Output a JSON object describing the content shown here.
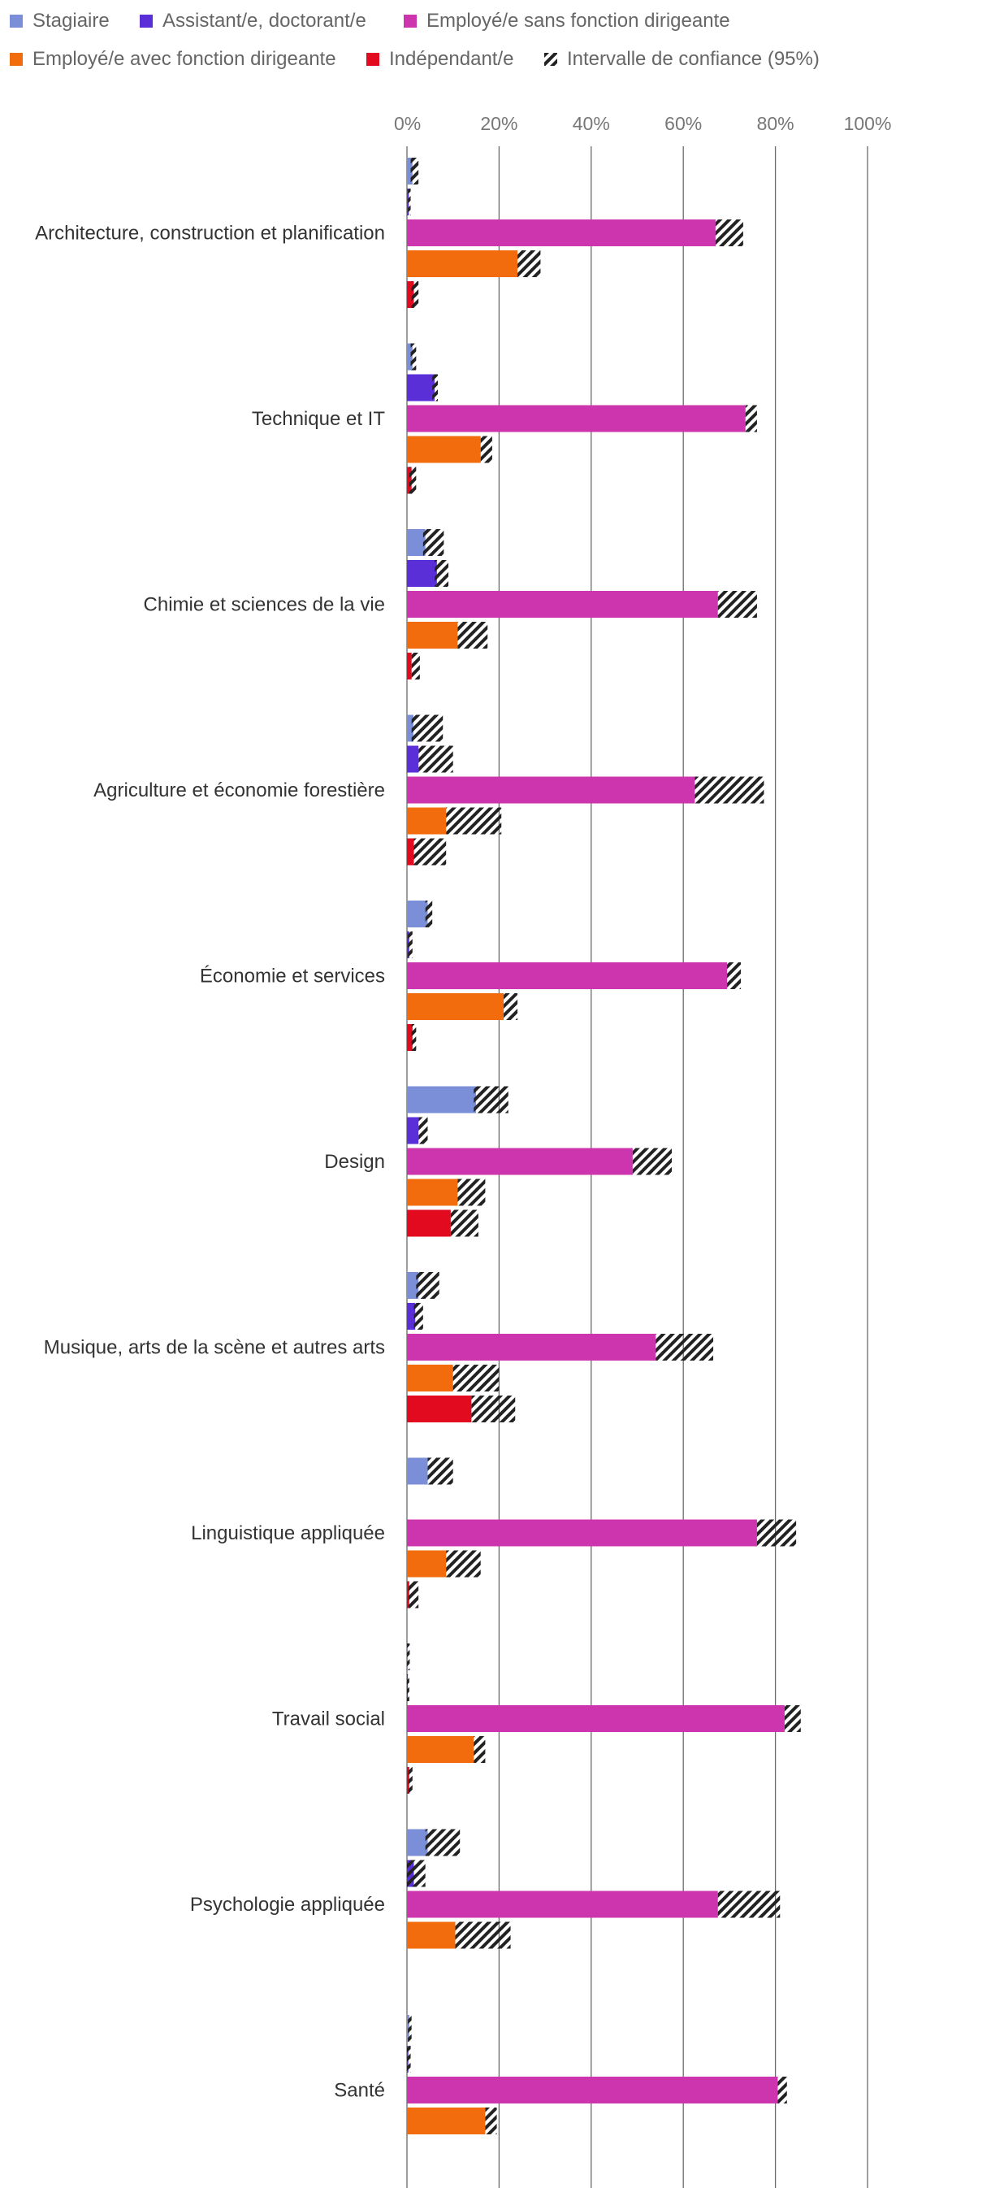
{
  "chart_data": {
    "type": "bar",
    "orientation": "horizontal",
    "title": "",
    "xlabel": "",
    "ylabel": "",
    "xlim": [
      0,
      100
    ],
    "grid": true,
    "legend_position": "top",
    "x_ticks": [
      "0%",
      "20%",
      "40%",
      "60%",
      "80%",
      "100%"
    ],
    "x_tick_values": [
      0,
      20,
      40,
      60,
      80,
      100
    ],
    "categories": [
      "Architecture, construction et planification",
      "Technique et IT",
      "Chimie et sciences de la vie",
      "Agriculture et économie forestière",
      "Économie et services",
      "Design",
      "Musique, arts de la scène et autres arts",
      "Linguistique appliquée",
      "Travail social",
      "Psychologie appliquée",
      "Santé"
    ],
    "series": [
      {
        "name": "Stagiaire",
        "color": "#7b8fd9",
        "values": [
          1.2,
          1.2,
          4,
          1.4,
          4.5,
          15,
          2.5,
          4.5,
          0.2,
          4.5,
          0.5
        ],
        "ci_low": [
          0.8,
          0.8,
          3.5,
          1,
          4,
          14.5,
          2,
          4.5,
          0,
          4,
          0.2
        ],
        "ci_high": [
          2.5,
          2,
          8,
          7.8,
          5.5,
          22,
          7,
          10,
          0.6,
          11.5,
          1
        ]
      },
      {
        "name": "Assistant/e, doctorant/e",
        "color": "#5b2fd8",
        "values": [
          0.4,
          6,
          6.5,
          2.5,
          0.5,
          2.5,
          1.8,
          0,
          0.2,
          1.5,
          0.3
        ],
        "ci_low": [
          0.2,
          5.5,
          6,
          2.5,
          0.2,
          2.5,
          1.5,
          0,
          0,
          0,
          0
        ],
        "ci_high": [
          0.8,
          6.7,
          9,
          10,
          1.2,
          4.5,
          3.5,
          0,
          0.5,
          4,
          0.8
        ]
      },
      {
        "name": "Employé/e sans fonction dirigeante",
        "color": "#cc35ad",
        "values": [
          67,
          73.5,
          67.5,
          62.5,
          69.5,
          49,
          54,
          76,
          82,
          67.5,
          80.5
        ],
        "ci_low": [
          67,
          73.5,
          67.5,
          62.5,
          69.5,
          49,
          54,
          76,
          82,
          67.5,
          80.5
        ],
        "ci_high": [
          73,
          76,
          76,
          77.5,
          72.5,
          57.5,
          66.5,
          84.5,
          85.5,
          81,
          82.5
        ]
      },
      {
        "name": "Employé/e avec fonction dirigeante",
        "color": "#f26c0d",
        "values": [
          24,
          16,
          11,
          8.5,
          21,
          11,
          10,
          8.5,
          14.5,
          10.5,
          17
        ],
        "ci_low": [
          24,
          16,
          11,
          8.5,
          21,
          11,
          10,
          8.5,
          14.5,
          10.5,
          17
        ],
        "ci_high": [
          29,
          18.5,
          17.5,
          20.5,
          24,
          17,
          20,
          16,
          17,
          22.5,
          19.5
        ]
      },
      {
        "name": "Indépendant/e",
        "color": "#e20a1e",
        "values": [
          1.5,
          1,
          1,
          1.5,
          1.2,
          9.5,
          14,
          0.5,
          0.5,
          0,
          0
        ],
        "ci_low": [
          1,
          0.5,
          1,
          1.5,
          1,
          9.5,
          14,
          0.3,
          0.3,
          0,
          0
        ],
        "ci_high": [
          2.5,
          2,
          2.8,
          8.5,
          2,
          15.5,
          23.5,
          2.5,
          1.2,
          0,
          0
        ]
      }
    ],
    "legend": [
      {
        "label": "Stagiaire",
        "color": "#7b8fd9",
        "kind": "solid"
      },
      {
        "label": "Assistant/e, doctorant/e",
        "color": "#5b2fd8",
        "kind": "solid"
      },
      {
        "label": "Employé/e sans fonction dirigeante",
        "color": "#cc35ad",
        "kind": "solid"
      },
      {
        "label": "Employé/e avec fonction dirigeante",
        "color": "#f26c0d",
        "kind": "solid"
      },
      {
        "label": "Indépendant/e",
        "color": "#e20a1e",
        "kind": "solid"
      },
      {
        "label": "Intervalle de confiance (95%)",
        "color": "#222222",
        "kind": "hatch"
      }
    ]
  }
}
